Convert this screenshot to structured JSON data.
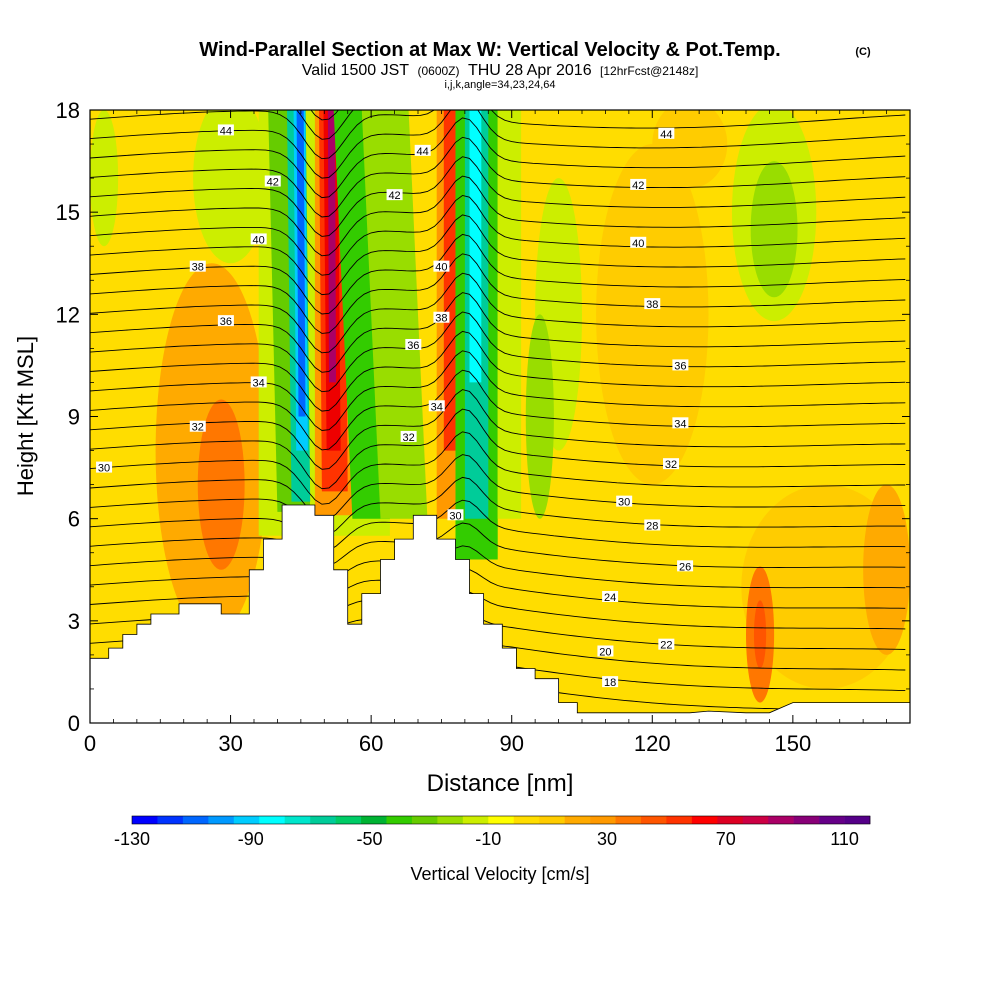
{
  "chart_data": {
    "type": "heatmap",
    "title": "Wind-Parallel Section at Max W: Vertical Velocity & Pot.Temp.",
    "title_mark": "(C)",
    "subtitle": {
      "prefix": "Valid 1500 JST",
      "utc": "(0600Z)",
      "date": "THU 28 Apr 2016",
      "forecast": "[12hrFcst@2148z]"
    },
    "subtitle2": "i,j,k,angle=34,23,24,64",
    "xlabel": "Distance [nm]",
    "ylabel": "Height [Kft MSL]",
    "xlim": [
      0,
      175
    ],
    "ylim": [
      0,
      18
    ],
    "x_ticks": [
      0,
      30,
      60,
      90,
      120,
      150
    ],
    "y_ticks": [
      0,
      3,
      6,
      9,
      12,
      15,
      18
    ],
    "fill_variable": "Vertical Velocity [cm/s]",
    "colorbar": {
      "label": "Vertical Velocity [cm/s]",
      "labeled_ticks": [
        -130,
        -90,
        -50,
        -10,
        30,
        70,
        110
      ],
      "colors": [
        "#0000ff",
        "#0033ff",
        "#0066ff",
        "#0099ff",
        "#00ccff",
        "#00ffff",
        "#00e6cc",
        "#00cc99",
        "#00cc66",
        "#00b333",
        "#33cc00",
        "#66cc00",
        "#99dd00",
        "#ccee00",
        "#ffff00",
        "#ffdd00",
        "#ffcc00",
        "#ffaa00",
        "#ff9900",
        "#ff7700",
        "#ff5500",
        "#ff3300",
        "#ff0000",
        "#dd0022",
        "#cc0044",
        "#aa0066",
        "#880077",
        "#660088",
        "#550088"
      ]
    },
    "contour_variable": "Pot.Temp.",
    "contour_levels": [
      18,
      20,
      22,
      24,
      26,
      28,
      30,
      32,
      34,
      36,
      38,
      40,
      42,
      44
    ],
    "contour_labels": [
      {
        "text": "44",
        "x": 29,
        "y": 17.4
      },
      {
        "text": "44",
        "x": 71,
        "y": 16.8
      },
      {
        "text": "44",
        "x": 123,
        "y": 17.3
      },
      {
        "text": "42",
        "x": 39,
        "y": 15.9
      },
      {
        "text": "42",
        "x": 65,
        "y": 15.5
      },
      {
        "text": "42",
        "x": 117,
        "y": 15.8
      },
      {
        "text": "40",
        "x": 36,
        "y": 14.2
      },
      {
        "text": "40",
        "x": 75,
        "y": 13.4
      },
      {
        "text": "40",
        "x": 117,
        "y": 14.1
      },
      {
        "text": "38",
        "x": 23,
        "y": 13.4
      },
      {
        "text": "38",
        "x": 75,
        "y": 11.9
      },
      {
        "text": "38",
        "x": 120,
        "y": 12.3
      },
      {
        "text": "36",
        "x": 29,
        "y": 11.8
      },
      {
        "text": "36",
        "x": 69,
        "y": 11.1
      },
      {
        "text": "36",
        "x": 126,
        "y": 10.5
      },
      {
        "text": "34",
        "x": 36,
        "y": 10.0
      },
      {
        "text": "34",
        "x": 74,
        "y": 9.3
      },
      {
        "text": "34",
        "x": 126,
        "y": 8.8
      },
      {
        "text": "32",
        "x": 23,
        "y": 8.7
      },
      {
        "text": "32",
        "x": 68,
        "y": 8.4
      },
      {
        "text": "32",
        "x": 124,
        "y": 7.6
      },
      {
        "text": "30",
        "x": 3,
        "y": 7.5
      },
      {
        "text": "30",
        "x": 78,
        "y": 6.1
      },
      {
        "text": "30",
        "x": 114,
        "y": 6.5
      },
      {
        "text": "28",
        "x": 120,
        "y": 5.8
      },
      {
        "text": "26",
        "x": 127,
        "y": 4.6
      },
      {
        "text": "24",
        "x": 111,
        "y": 3.7
      },
      {
        "text": "22",
        "x": 123,
        "y": 2.3
      },
      {
        "text": "20",
        "x": 110,
        "y": 2.1
      },
      {
        "text": "18",
        "x": 111,
        "y": 1.2
      }
    ],
    "terrain": [
      [
        0,
        1.9
      ],
      [
        4,
        1.9
      ],
      [
        4,
        2.2
      ],
      [
        7,
        2.2
      ],
      [
        7,
        2.6
      ],
      [
        10,
        2.6
      ],
      [
        10,
        2.9
      ],
      [
        13,
        2.9
      ],
      [
        13,
        3.2
      ],
      [
        19,
        3.2
      ],
      [
        19,
        3.5
      ],
      [
        28,
        3.5
      ],
      [
        28,
        3.2
      ],
      [
        34,
        3.2
      ],
      [
        34,
        4.5
      ],
      [
        37,
        4.5
      ],
      [
        37,
        5.4
      ],
      [
        41,
        5.4
      ],
      [
        41,
        6.4
      ],
      [
        48,
        6.4
      ],
      [
        48,
        6.1
      ],
      [
        52,
        6.1
      ],
      [
        52,
        4.5
      ],
      [
        55,
        4.5
      ],
      [
        55,
        2.9
      ],
      [
        58,
        2.9
      ],
      [
        58,
        3.8
      ],
      [
        62,
        3.8
      ],
      [
        62,
        4.8
      ],
      [
        65,
        4.8
      ],
      [
        65,
        5.4
      ],
      [
        69,
        5.4
      ],
      [
        69,
        6.1
      ],
      [
        74,
        6.1
      ],
      [
        74,
        5.4
      ],
      [
        78,
        5.4
      ],
      [
        78,
        4.8
      ],
      [
        81,
        4.8
      ],
      [
        81,
        3.8
      ],
      [
        84,
        3.8
      ],
      [
        84,
        2.9
      ],
      [
        88,
        2.9
      ],
      [
        88,
        2.2
      ],
      [
        91,
        2.2
      ],
      [
        91,
        1.6
      ],
      [
        95,
        1.6
      ],
      [
        95,
        1.3
      ],
      [
        100,
        1.3
      ],
      [
        100,
        0.6
      ],
      [
        104,
        0.6
      ],
      [
        104,
        0.3
      ],
      [
        128,
        0.3
      ],
      [
        132,
        0.35
      ],
      [
        140,
        0.3
      ],
      [
        145,
        0.3
      ],
      [
        150,
        0.6
      ],
      [
        175,
        0.6
      ],
      [
        175,
        0
      ],
      [
        0,
        0
      ]
    ],
    "notes": "Color-filled vertical velocity with black potential-temperature isentropes; terrain masked in white."
  }
}
